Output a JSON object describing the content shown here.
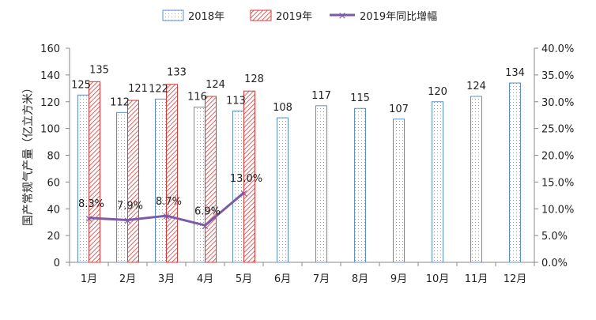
{
  "chart_data": {
    "type": "bar",
    "categories": [
      "1月",
      "2月",
      "3月",
      "4月",
      "5月",
      "6月",
      "7月",
      "8月",
      "9月",
      "10月",
      "11月",
      "12月"
    ],
    "series": [
      {
        "name": "2018年",
        "kind": "bar",
        "axis": "left",
        "values": [
          125,
          112,
          122,
          116,
          113,
          108,
          117,
          115,
          107,
          120,
          124,
          134
        ],
        "labels": [
          "125",
          "112",
          "122",
          "116",
          "113",
          "108",
          "117",
          "115",
          "107",
          "120",
          "124",
          "134"
        ],
        "color": "#5b8fd0"
      },
      {
        "name": "2019年",
        "kind": "bar",
        "axis": "left",
        "values": [
          135,
          121,
          133,
          124,
          128,
          null,
          null,
          null,
          null,
          null,
          null,
          null
        ],
        "labels": [
          "135",
          "121",
          "133",
          "124",
          "128"
        ],
        "color": "#d83a3a"
      },
      {
        "name": "2019年同比增幅",
        "kind": "line",
        "axis": "right",
        "values": [
          8.3,
          7.9,
          8.7,
          6.9,
          13.0,
          null,
          null,
          null,
          null,
          null,
          null,
          null
        ],
        "labels": [
          "8.3%",
          "7.9%",
          "8.7%",
          "6.9%",
          "13.0%"
        ],
        "color": "#7d5aa8"
      }
    ],
    "ylabel": "国产常规气产量（亿立方米）",
    "ylim": [
      0,
      160
    ],
    "yticks": [
      "0",
      "20",
      "40",
      "60",
      "80",
      "100",
      "120",
      "140",
      "160"
    ],
    "y2lim": [
      0,
      40
    ],
    "y2ticks": [
      "0.0%",
      "5.0%",
      "10.0%",
      "15.0%",
      "20.0%",
      "25.0%",
      "30.0%",
      "35.0%",
      "40.0%"
    ],
    "legend_position": "top",
    "grid": false
  }
}
